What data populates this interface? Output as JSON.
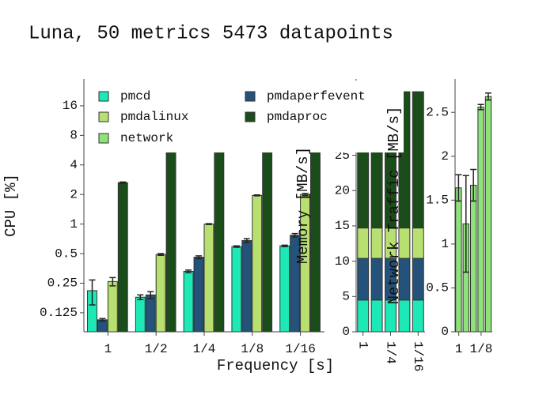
{
  "title": "Luna, 50 metrics 5473 datapoints",
  "chart_data": [
    {
      "type": "bar",
      "barmode": "group",
      "ylabel": "CPU [%]",
      "xlabel": "Frequency [s]",
      "log_y": true,
      "categories": [
        "1",
        "1/2",
        "1/4",
        "1/8",
        "1/16"
      ],
      "ylim": [
        0.08,
        30
      ],
      "yticks": [
        0.125,
        0.25,
        0.5,
        1,
        2,
        4,
        8,
        16
      ],
      "series": [
        {
          "name": "pmcd",
          "color": "#1de9b6",
          "values": [
            0.21,
            0.18,
            0.33,
            0.59,
            0.6
          ],
          "errors": [
            0.06,
            0.01,
            0.01,
            0.01,
            0.01
          ]
        },
        {
          "name": "pmdaperfevent",
          "color": "#24527a",
          "values": [
            0.106,
            0.19,
            0.46,
            0.68,
            0.77
          ],
          "errors": [
            0.003,
            0.015,
            0.015,
            0.03,
            0.03
          ]
        },
        {
          "name": "pmdalinux",
          "color": "#b8e070",
          "values": [
            0.26,
            0.49,
            1.0,
            1.96,
            2.0
          ],
          "errors": [
            0.025,
            0.01,
            0.01,
            0.02,
            0.05
          ]
        },
        {
          "name": "pmdaproc",
          "color": "#1b4d1b",
          "values": [
            2.64,
            20,
            20,
            20,
            20
          ],
          "errors": [
            0.04,
            0,
            0,
            0,
            0
          ]
        }
      ]
    },
    {
      "type": "bar",
      "barmode": "stack",
      "ylabel": "Memory [MB/s]",
      "categories": [
        "1",
        null,
        "1/4",
        null,
        "1/16"
      ],
      "ylim": [
        0,
        35.8
      ],
      "yticks": [
        0,
        5,
        10,
        15,
        20,
        25
      ],
      "series": [
        {
          "name": "pmcd",
          "color": "#1de9b6",
          "values": [
            4.5,
            4.5,
            4.5,
            4.5,
            4.5
          ]
        },
        {
          "name": "pmdaperfevent",
          "color": "#24527a",
          "values": [
            5.9,
            5.9,
            5.9,
            5.9,
            5.9
          ]
        },
        {
          "name": "pmdalinux",
          "color": "#b8e070",
          "values": [
            4.3,
            4.3,
            4.3,
            4.3,
            4.3
          ]
        },
        {
          "name": "pmdaproc",
          "color": "#1b4d1b",
          "values": [
            19.3,
            19.3,
            19.3,
            19.3,
            19.3
          ]
        }
      ]
    },
    {
      "type": "bar",
      "barmode": "group",
      "ylabel": "Network Traffic [MB/s]",
      "categories": [
        "1",
        null,
        null,
        "1/8",
        null
      ],
      "ylim": [
        0,
        2.88
      ],
      "yticks": [
        0,
        0.5,
        1,
        1.5,
        2,
        2.5
      ],
      "series": [
        {
          "name": "network",
          "color": "#8ee27a",
          "values": [
            1.64,
            1.23,
            1.67,
            2.56,
            2.68
          ],
          "errors": [
            0.15,
            0.55,
            0.18,
            0.03,
            0.04
          ]
        }
      ]
    }
  ]
}
